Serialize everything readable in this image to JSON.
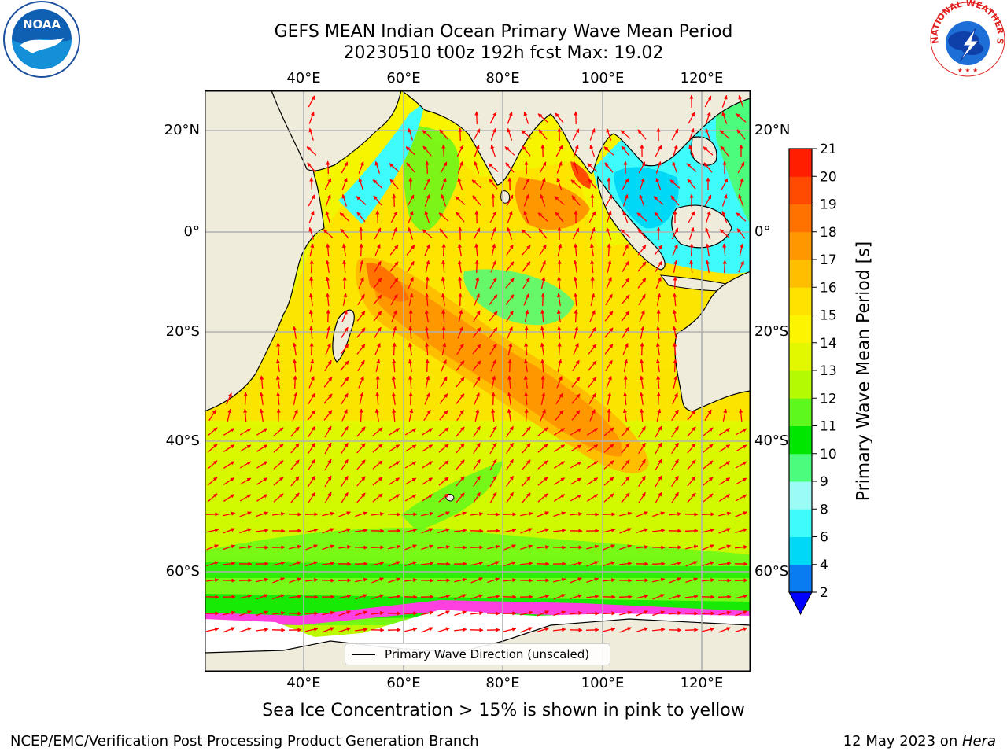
{
  "header": {
    "title_line1": "GEFS MEAN Indian Ocean Primary Wave Mean Period",
    "title_line2": "20230510 t00z 192h fcst   Max: 19.02"
  },
  "logos": {
    "left": "noaa-logo",
    "right": "nws-logo",
    "noaa_text": "NOAA",
    "nws_text": "NATIONAL WEATHER SERVICE"
  },
  "map": {
    "lon_ticks": [
      "40°E",
      "60°E",
      "80°E",
      "100°E",
      "120°E"
    ],
    "lat_ticks": [
      "20°N",
      "0°",
      "20°S",
      "40°S",
      "60°S"
    ],
    "legend_label": "Primary Wave Direction (unscaled)",
    "colors": {
      "land": "#efecdc",
      "ice_free_ocean": "#ffffff",
      "coast": "#000000",
      "grid": "#b0b0b0",
      "arrow": "#ff0000"
    }
  },
  "colorbar": {
    "label": "Primary Wave Mean Period [s]",
    "ticks": [
      "2",
      "4",
      "6",
      "8",
      "9",
      "10",
      "11",
      "12",
      "13",
      "14",
      "15",
      "16",
      "17",
      "18",
      "19",
      "20",
      "21"
    ],
    "colors": [
      "#0a7cf2",
      "#00d8f8",
      "#3ffcfc",
      "#9afcf4",
      "#4cfc7c",
      "#00e600",
      "#5cf81e",
      "#b4fa00",
      "#e2f800",
      "#fcf400",
      "#ffe200",
      "#ffbe00",
      "#ff9800",
      "#ff7200",
      "#ff4a00",
      "#ff1e00"
    ],
    "under_color": "#0000ff"
  },
  "footnote": "Sea Ice Concentration > 15% is shown in pink to yellow",
  "footer": {
    "left": "NCEP/EMC/Verification Post Processing Product Generation Branch",
    "right_prefix": "12 May 2023 on ",
    "right_machine": "Hera"
  }
}
